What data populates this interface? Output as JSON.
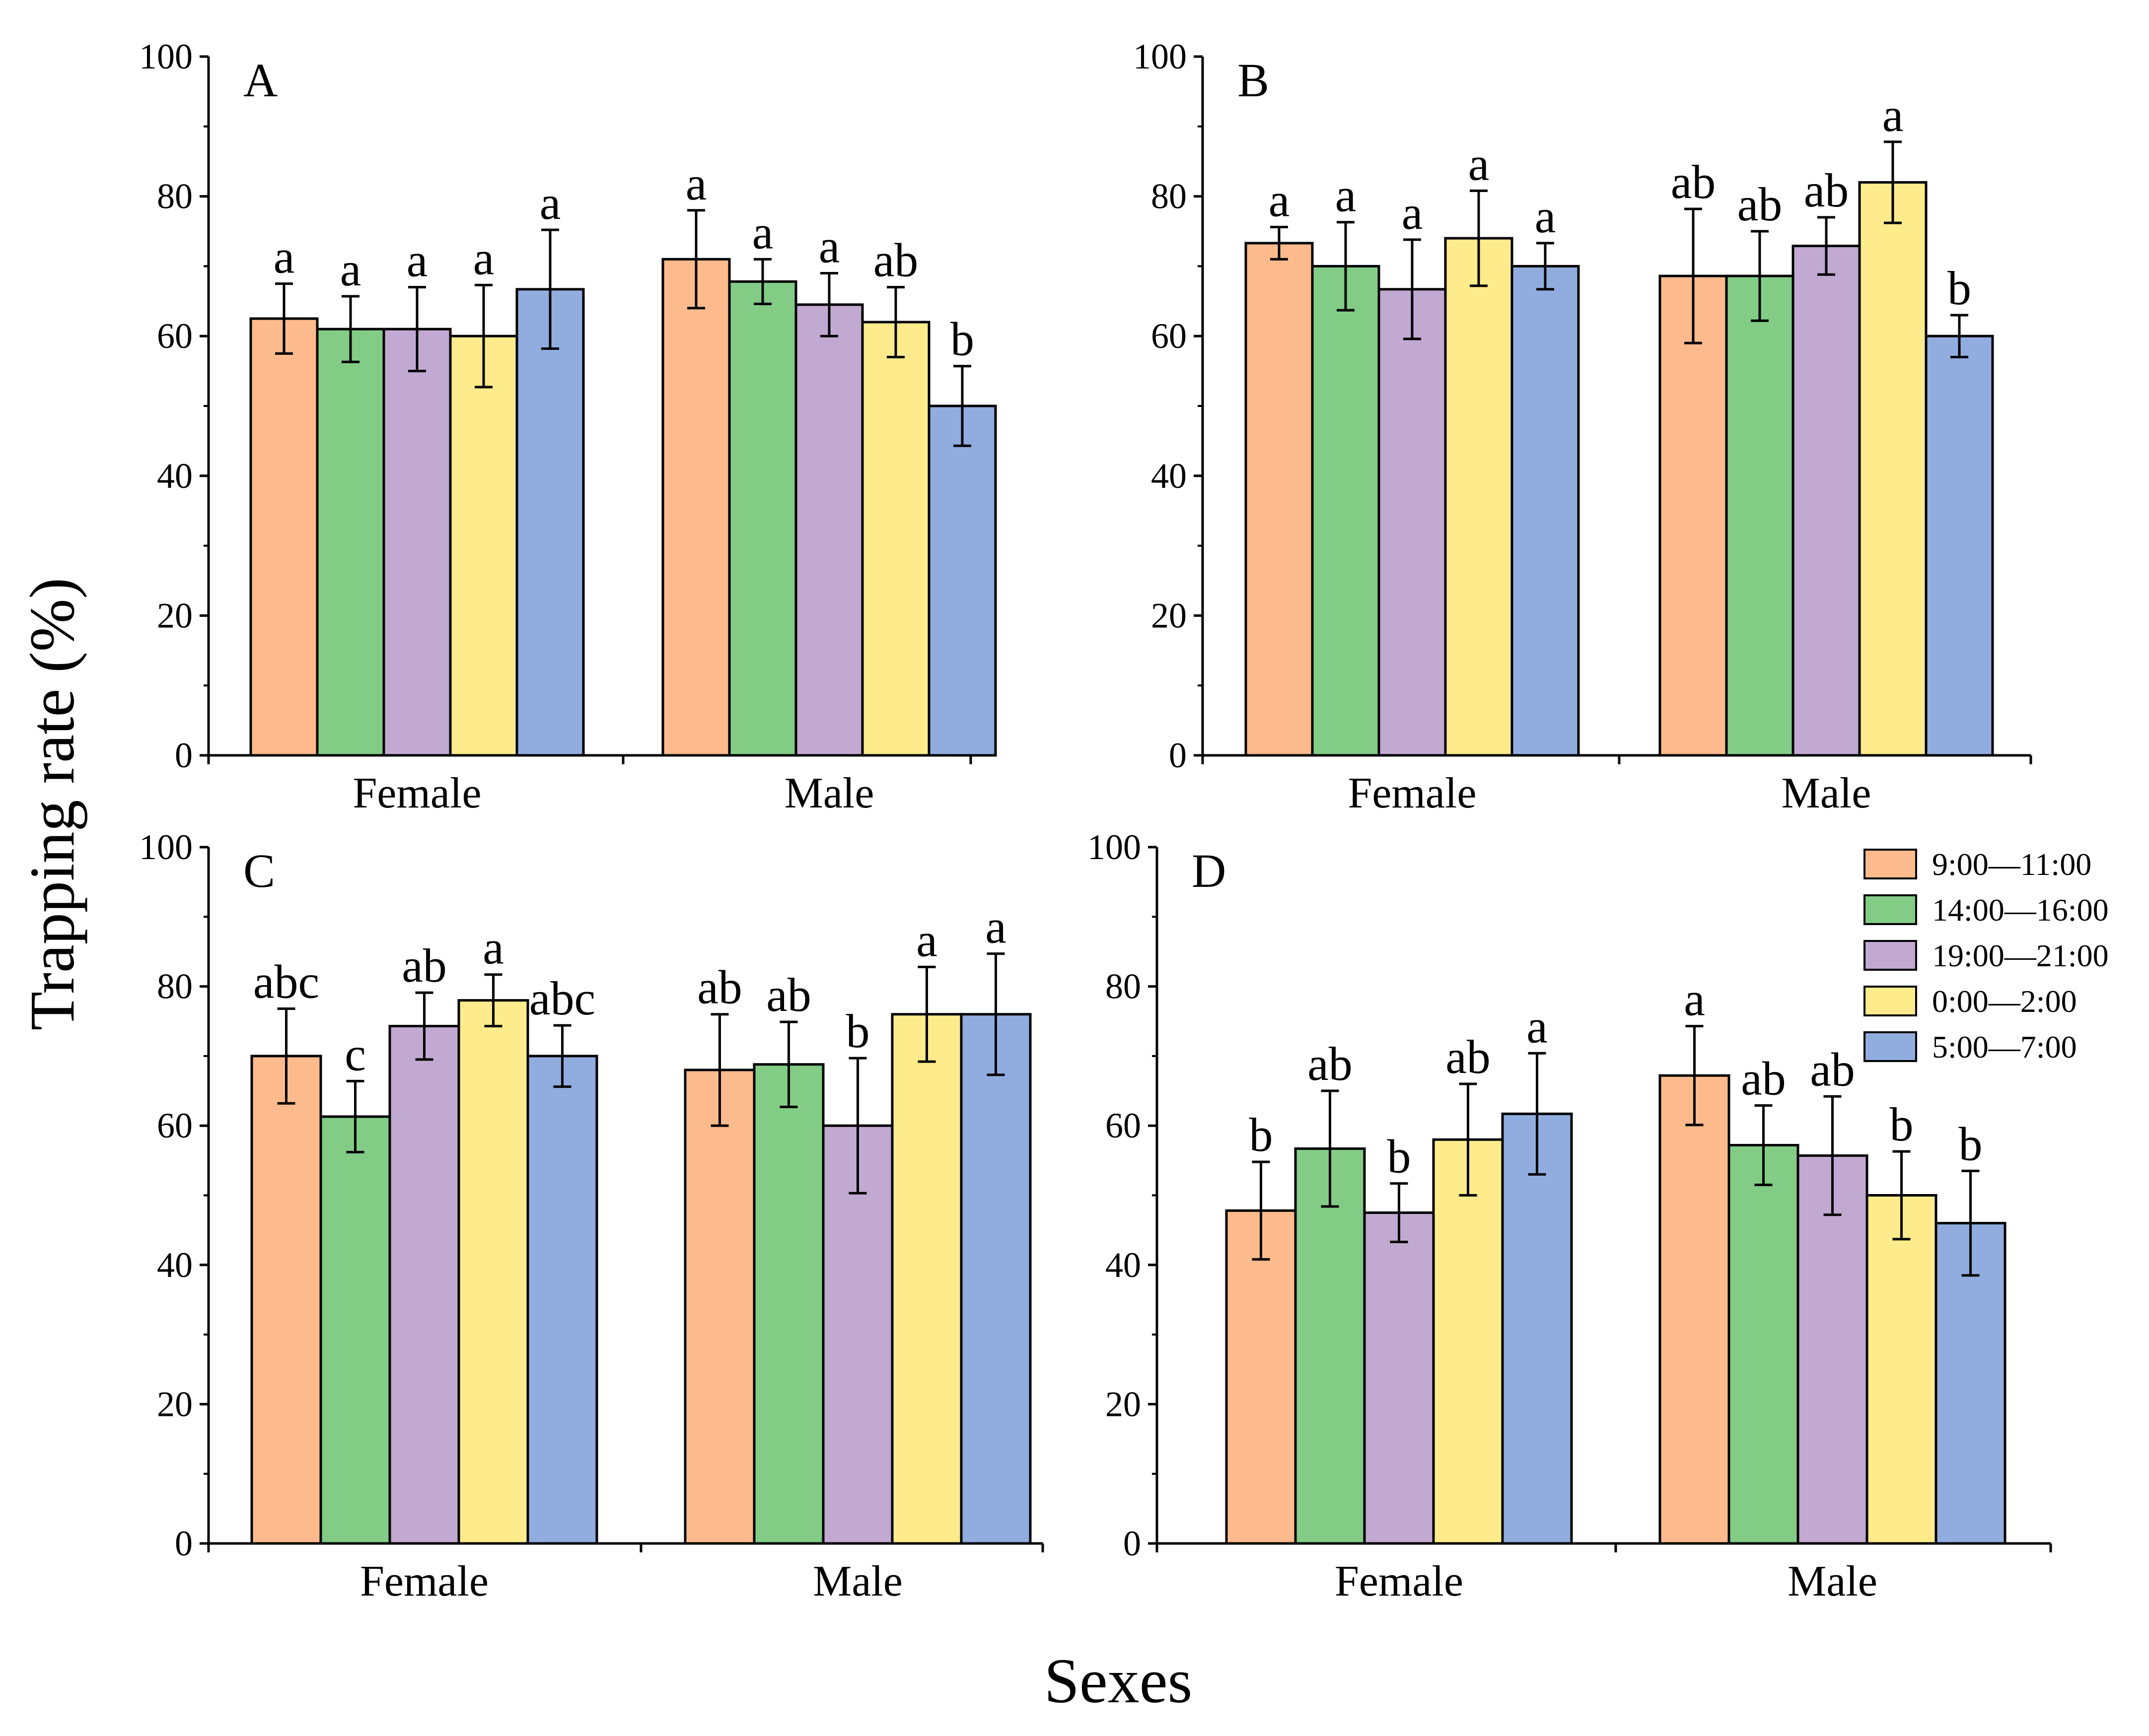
{
  "figure": {
    "xlabel": "Sexes",
    "ylabel": "Trapping rate (%)"
  },
  "legend": {
    "position": "top-right of panel D",
    "entries": [
      {
        "name": "9:00—11:00",
        "color": "#FDBB8D"
      },
      {
        "name": "14:00—16:00",
        "color": "#82CC86"
      },
      {
        "name": "19:00—21:00",
        "color": "#C2A9D1"
      },
      {
        "name": "0:00—2:00",
        "color": "#FDEB8C"
      },
      {
        "name": "5:00—7:00",
        "color": "#91ADDF"
      }
    ]
  },
  "chart_data": [
    {
      "type": "bar",
      "title": "A",
      "xlabel": "Sexes",
      "ylabel": "Trapping rate (%)",
      "ylim": [
        0,
        100
      ],
      "yticks": [
        "0",
        "20",
        "40",
        "60",
        "80",
        "100"
      ],
      "categories": [
        "Female",
        "Male"
      ],
      "series": [
        {
          "name": "9:00—11:00",
          "values": [
            62.5,
            71
          ],
          "errors": [
            5,
            7
          ],
          "letters": [
            "a",
            "a"
          ]
        },
        {
          "name": "14:00—16:00",
          "values": [
            61,
            67.8
          ],
          "errors": [
            4.7,
            3.2
          ],
          "letters": [
            "a",
            "a"
          ]
        },
        {
          "name": "19:00—21:00",
          "values": [
            61,
            64.5
          ],
          "errors": [
            6,
            4.5
          ],
          "letters": [
            "a",
            "a"
          ]
        },
        {
          "name": "0:00—2:00",
          "values": [
            60,
            62
          ],
          "errors": [
            7.3,
            5
          ],
          "letters": [
            "a",
            "ab"
          ]
        },
        {
          "name": "5:00—7:00",
          "values": [
            66.7,
            50
          ],
          "errors": [
            8.5,
            5.7
          ],
          "letters": [
            "a",
            "b"
          ]
        }
      ]
    },
    {
      "type": "bar",
      "title": "B",
      "xlabel": "Sexes",
      "ylabel": "Trapping rate (%)",
      "ylim": [
        0,
        100
      ],
      "yticks": [
        "0",
        "20",
        "40",
        "60",
        "80",
        "100"
      ],
      "categories": [
        "Female",
        "Male"
      ],
      "series": [
        {
          "name": "9:00—11:00",
          "values": [
            73.3,
            68.6
          ],
          "errors": [
            2.3,
            9.6
          ],
          "letters": [
            "a",
            "ab"
          ]
        },
        {
          "name": "14:00—16:00",
          "values": [
            70,
            68.6
          ],
          "errors": [
            6.3,
            6.4
          ],
          "letters": [
            "a",
            "ab"
          ]
        },
        {
          "name": "19:00—21:00",
          "values": [
            66.7,
            72.9
          ],
          "errors": [
            7.1,
            4.1
          ],
          "letters": [
            "a",
            "ab"
          ]
        },
        {
          "name": "0:00—2:00",
          "values": [
            74,
            82
          ],
          "errors": [
            6.8,
            5.8
          ],
          "letters": [
            "a",
            "a"
          ]
        },
        {
          "name": "5:00—7:00",
          "values": [
            70,
            60
          ],
          "errors": [
            3.3,
            3
          ],
          "letters": [
            "a",
            "b"
          ]
        }
      ]
    },
    {
      "type": "bar",
      "title": "C",
      "xlabel": "Sexes",
      "ylabel": "Trapping rate (%)",
      "ylim": [
        0,
        100
      ],
      "yticks": [
        "0",
        "20",
        "40",
        "60",
        "80",
        "100"
      ],
      "categories": [
        "Female",
        "Male"
      ],
      "series": [
        {
          "name": "9:00—11:00",
          "values": [
            70,
            68
          ],
          "errors": [
            6.8,
            8
          ],
          "letters": [
            "abc",
            "ab"
          ]
        },
        {
          "name": "14:00—16:00",
          "values": [
            61.3,
            68.8
          ],
          "errors": [
            5.1,
            6.1
          ],
          "letters": [
            "c",
            "ab"
          ]
        },
        {
          "name": "19:00—21:00",
          "values": [
            74.3,
            60
          ],
          "errors": [
            4.8,
            9.7
          ],
          "letters": [
            "ab",
            "b"
          ]
        },
        {
          "name": "0:00—2:00",
          "values": [
            78,
            76
          ],
          "errors": [
            3.7,
            6.8
          ],
          "letters": [
            "a",
            "a"
          ]
        },
        {
          "name": "5:00—7:00",
          "values": [
            70,
            76
          ],
          "errors": [
            4.4,
            8.7
          ],
          "letters": [
            "abc",
            "a"
          ]
        }
      ]
    },
    {
      "type": "bar",
      "title": "D",
      "xlabel": "Sexes",
      "ylabel": "Trapping rate (%)",
      "ylim": [
        0,
        100
      ],
      "yticks": [
        "0",
        "20",
        "40",
        "60",
        "80",
        "100"
      ],
      "categories": [
        "Female",
        "Male"
      ],
      "series": [
        {
          "name": "9:00—11:00",
          "values": [
            47.8,
            67.2
          ],
          "errors": [
            7,
            7.1
          ],
          "letters": [
            "b",
            "a"
          ]
        },
        {
          "name": "14:00—16:00",
          "values": [
            56.7,
            57.2
          ],
          "errors": [
            8.3,
            5.7
          ],
          "letters": [
            "ab",
            "ab"
          ]
        },
        {
          "name": "19:00—21:00",
          "values": [
            47.5,
            55.7
          ],
          "errors": [
            4.2,
            8.5
          ],
          "letters": [
            "b",
            "ab"
          ]
        },
        {
          "name": "0:00—2:00",
          "values": [
            58,
            50
          ],
          "errors": [
            8,
            6.3
          ],
          "letters": [
            "ab",
            "b"
          ]
        },
        {
          "name": "5:00—7:00",
          "values": [
            61.7,
            46
          ],
          "errors": [
            8.7,
            7.5
          ],
          "letters": [
            "a",
            "b"
          ]
        }
      ]
    }
  ]
}
